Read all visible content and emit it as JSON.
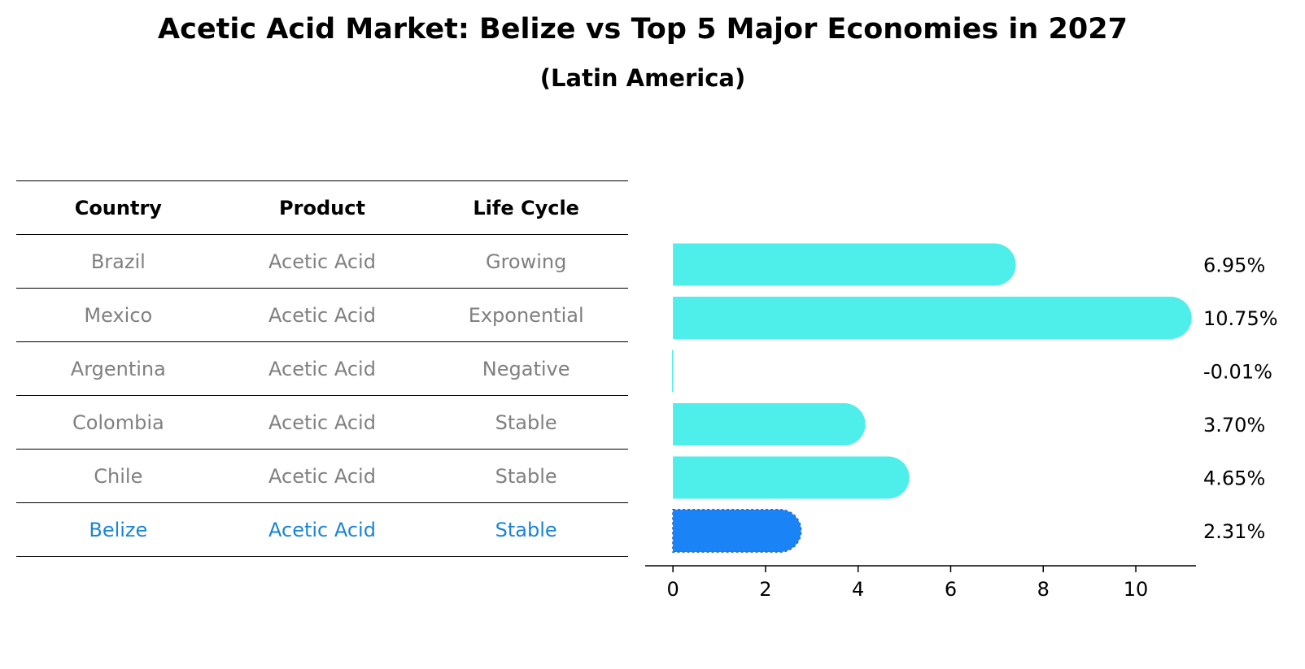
{
  "title": "Acetic Acid Market: Belize vs Top 5 Major Economies in 2027",
  "subtitle": "(Latin America)",
  "table": {
    "headers": [
      "Country",
      "Product",
      "Life Cycle"
    ],
    "rows": [
      {
        "country": "Brazil",
        "product": "Acetic Acid",
        "life_cycle": "Growing"
      },
      {
        "country": "Mexico",
        "product": "Acetic Acid",
        "life_cycle": "Exponential"
      },
      {
        "country": "Argentina",
        "product": "Acetic Acid",
        "life_cycle": "Negative"
      },
      {
        "country": "Colombia",
        "product": "Acetic Acid",
        "life_cycle": "Stable"
      },
      {
        "country": "Chile",
        "product": "Acetic Acid",
        "life_cycle": "Stable"
      },
      {
        "country": "Belize",
        "product": "Acetic Acid",
        "life_cycle": "Stable"
      }
    ],
    "highlight_row": 5,
    "highlight_color": "#1a84d6",
    "text_color": "#808080"
  },
  "chart_data": {
    "type": "bar",
    "orientation": "horizontal",
    "categories": [
      "Brazil",
      "Mexico",
      "Argentina",
      "Colombia",
      "Chile",
      "Belize"
    ],
    "values": [
      6.95,
      10.75,
      -0.01,
      3.7,
      4.65,
      2.31
    ],
    "value_labels": [
      "6.95%",
      "10.75%",
      "-0.01%",
      "3.70%",
      "4.65%",
      "2.31%"
    ],
    "xlim": [
      -0.6,
      11.3
    ],
    "xticks": [
      0,
      2,
      4,
      6,
      8,
      10
    ],
    "bar_color": "#4eeeea",
    "highlight_color": "#1a84f6",
    "highlight_index": 5,
    "bar_style": "rounded-end",
    "grid": false
  }
}
